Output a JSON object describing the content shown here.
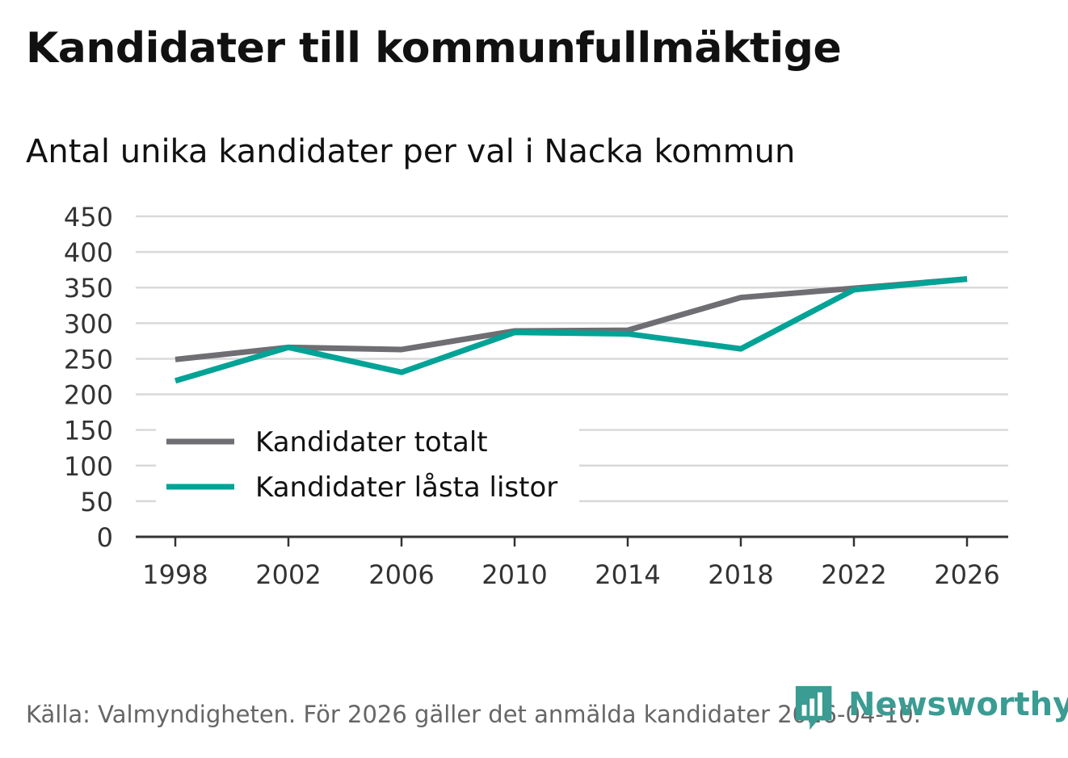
{
  "title": "Kandidater till kommunfullmäktige",
  "subtitle": "Antal unika kandidater per val i Nacka kommun",
  "footer": "Källa: Valmyndigheten. För 2026 gäller det anmälda kandidater 2026-04-10.",
  "brand": "Newsworthy",
  "colors": {
    "totalt": "#6e6e73",
    "lasta": "#00a396",
    "grid": "#d9d9d9",
    "axis": "#333333",
    "brand": "#3a9c92"
  },
  "chart_data": {
    "type": "line",
    "categories": [
      "1998",
      "2002",
      "2006",
      "2010",
      "2014",
      "2018",
      "2022",
      "2026"
    ],
    "series": [
      {
        "name": "Kandidater totalt",
        "values": [
          249,
          266,
          263,
          289,
          290,
          336,
          349,
          362
        ]
      },
      {
        "name": "Kandidater låsta listor",
        "values": [
          219,
          266,
          231,
          287,
          285,
          264,
          347,
          362
        ]
      }
    ],
    "yticks": [
      "0",
      "50",
      "100",
      "150",
      "200",
      "250",
      "300",
      "350",
      "400",
      "450"
    ],
    "ylim": [
      0,
      450
    ],
    "legend": "bottom-left"
  }
}
